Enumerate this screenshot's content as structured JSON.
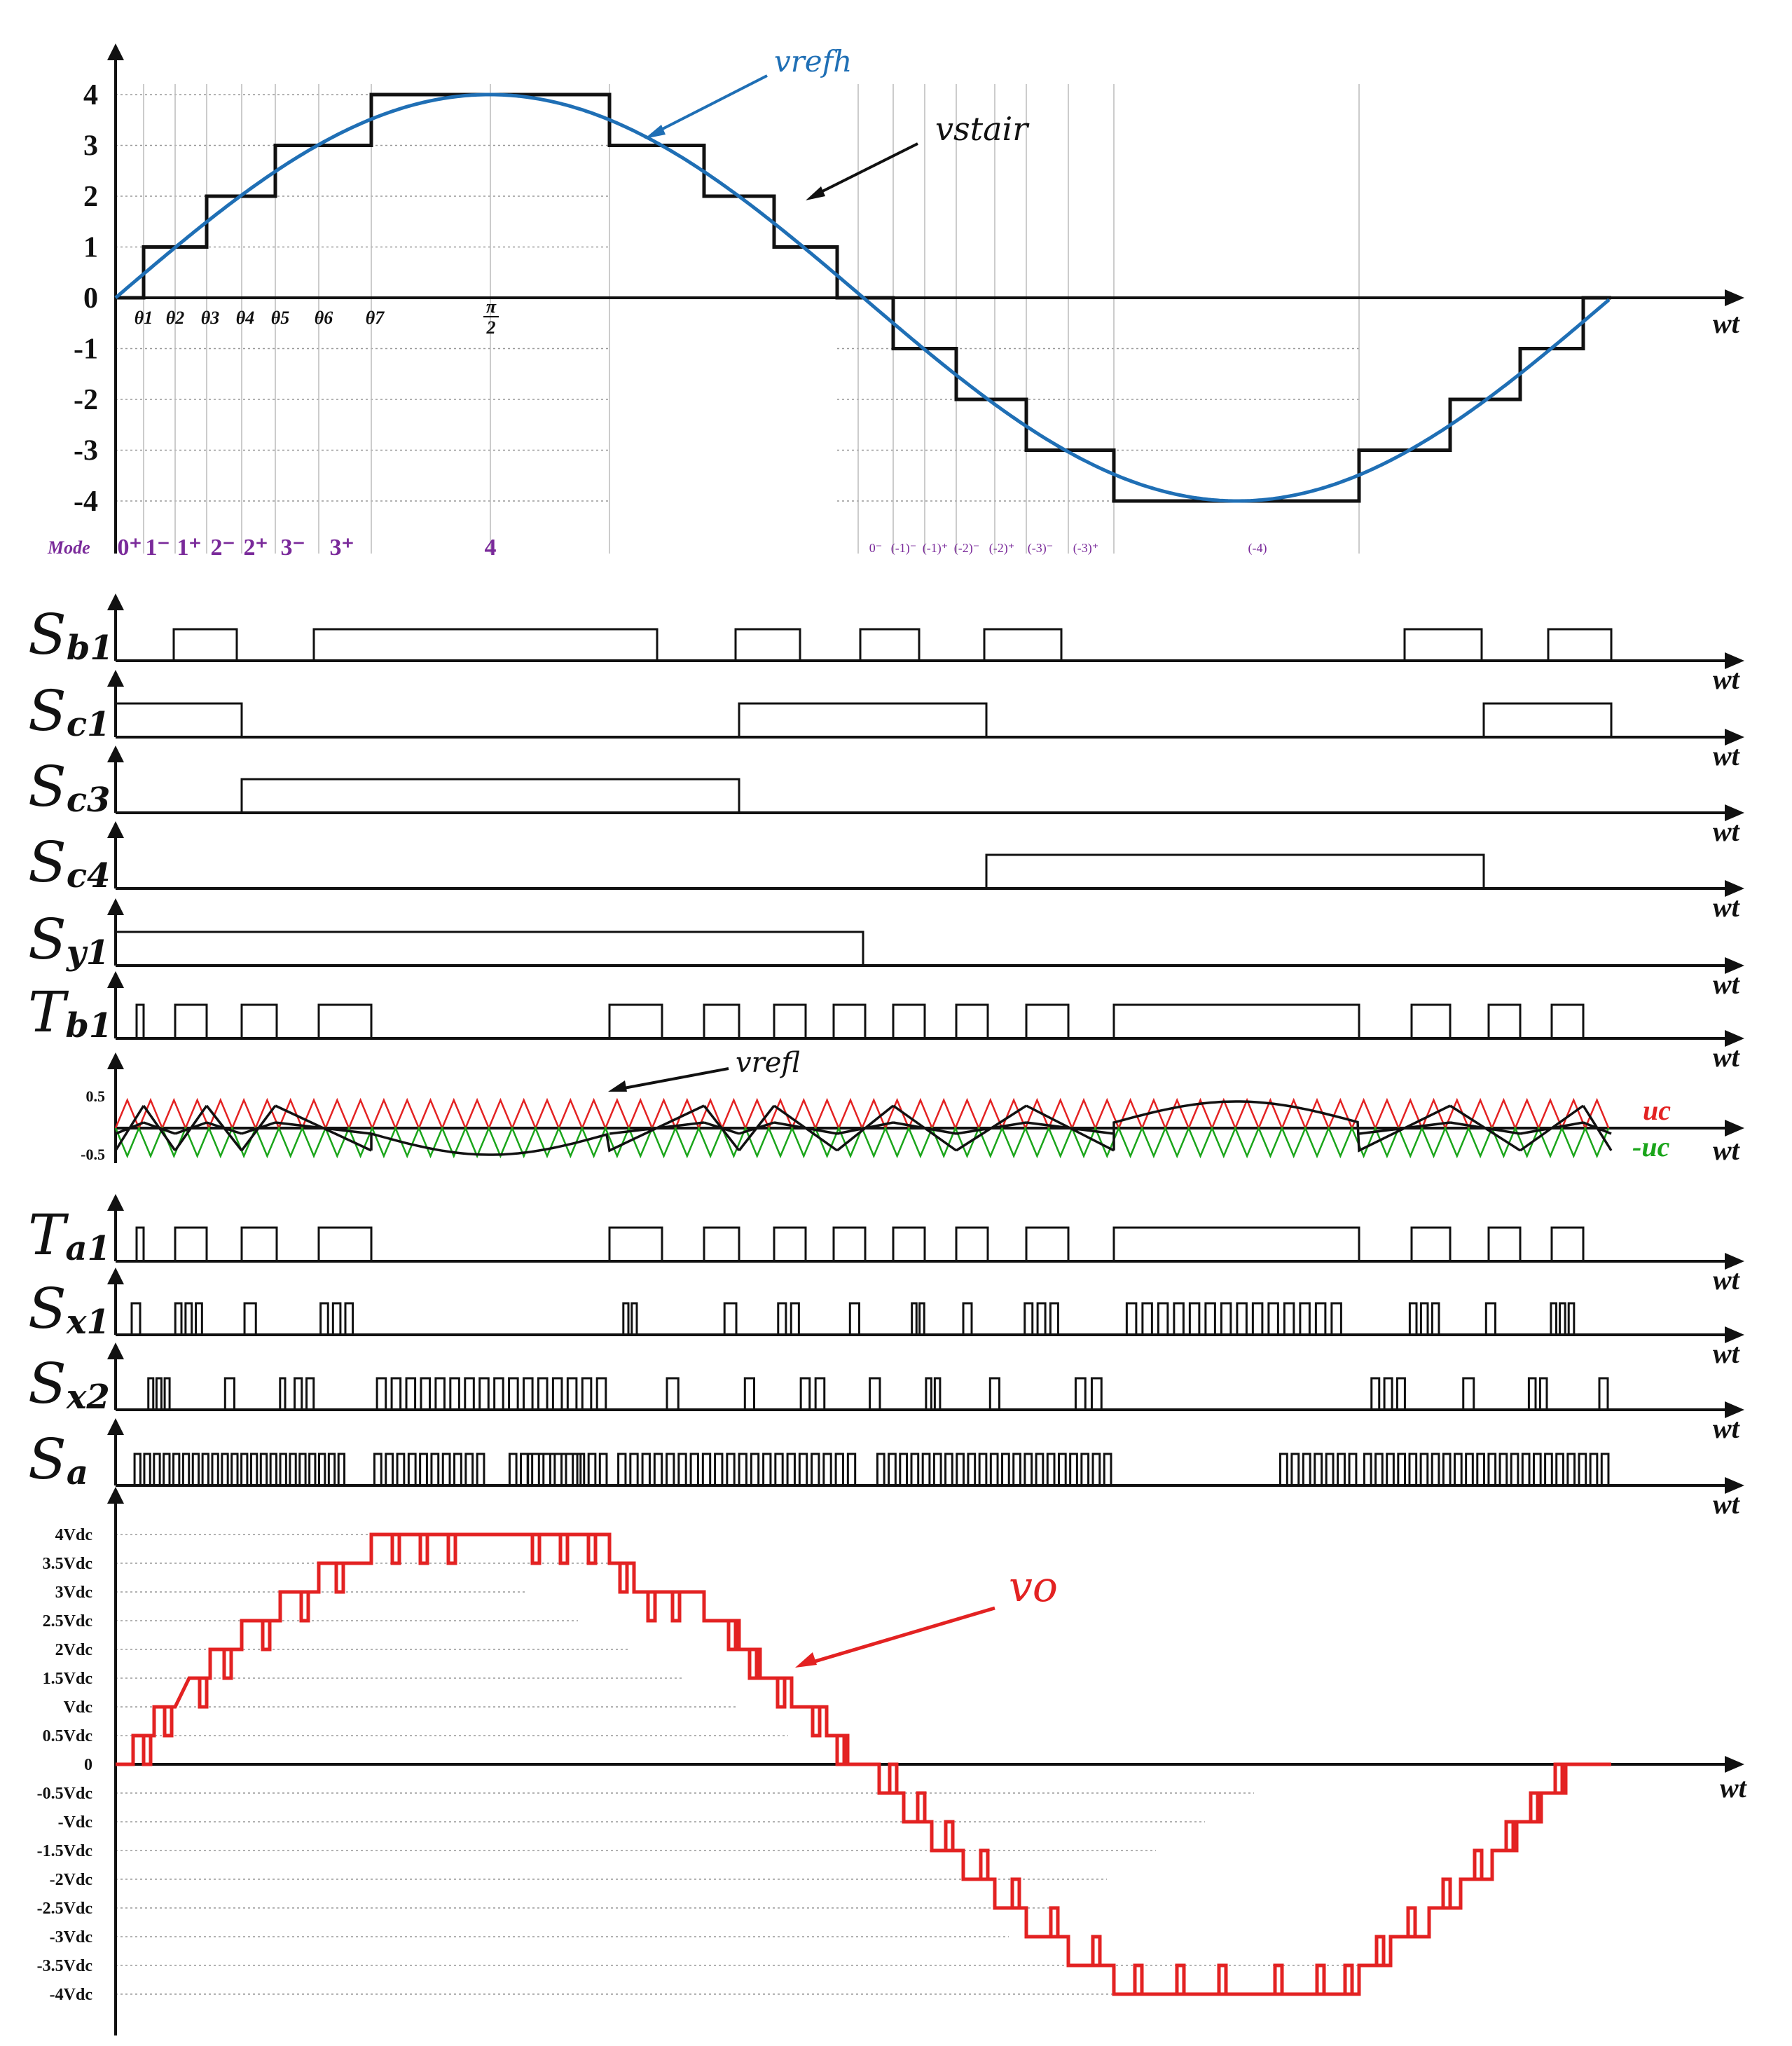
{
  "axis_label": "wt",
  "top_panel": {
    "y_ticks": [
      "4",
      "3",
      "2",
      "1",
      "0",
      "-1",
      "-2",
      "-3",
      "-4"
    ],
    "thetas": [
      "θ1",
      "θ2",
      "θ3",
      "θ4",
      "θ5",
      "θ6",
      "θ7"
    ],
    "pi_over_2_num": "π",
    "pi_over_2_den": "2",
    "ref_label": "vrefh",
    "stair_label": "vstair",
    "mode_title": "Mode",
    "modes_pos": [
      "0⁺",
      "1⁻",
      "1⁺",
      "2⁻",
      "2⁺",
      "3⁻",
      "3⁺",
      "4"
    ],
    "modes_neg": [
      "0⁻",
      "(-1)⁻",
      "(-1)⁺",
      "(-2)⁻",
      "(-2)⁺",
      "(-3)⁻",
      "(-3)⁺",
      "(-4)"
    ],
    "colors": {
      "ref": "#1f6fb5",
      "stair": "#111111",
      "mode": "#7a2a9a"
    }
  },
  "signals": {
    "sb1": {
      "main": "S",
      "sub": "b1"
    },
    "sc1": {
      "main": "S",
      "sub": "c1"
    },
    "sc3": {
      "main": "S",
      "sub": "c3"
    },
    "sc4": {
      "main": "S",
      "sub": "c4"
    },
    "sy1": {
      "main": "S",
      "sub": "y1"
    },
    "tb1": {
      "main": "T",
      "sub": "b1"
    },
    "ta1": {
      "main": "T",
      "sub": "a1"
    },
    "sx1": {
      "main": "S",
      "sub": "x1"
    },
    "sx2": {
      "main": "S",
      "sub": "x2"
    },
    "sa": {
      "main": "S",
      "sub": "a"
    }
  },
  "carrier_panel": {
    "top_tick": "0.5",
    "bottom_tick": "-0.5",
    "refl_label": "vrefl",
    "uc_label": "uc",
    "neg_uc_label": "-uc",
    "colors": {
      "uc": "#e32222",
      "neg_uc": "#1aa51a",
      "refl": "#111111"
    }
  },
  "output_panel": {
    "y_ticks": [
      "4Vdc",
      "3.5Vdc",
      "3Vdc",
      "2.5Vdc",
      "2Vdc",
      "1.5Vdc",
      "Vdc",
      "0.5Vdc",
      "0",
      "-0.5Vdc",
      "-Vdc",
      "-1.5Vdc",
      "-2Vdc",
      "-2.5Vdc",
      "-3Vdc",
      "-3.5Vdc",
      "-4Vdc"
    ],
    "vo_label": "vo",
    "color": "#e32222"
  }
}
